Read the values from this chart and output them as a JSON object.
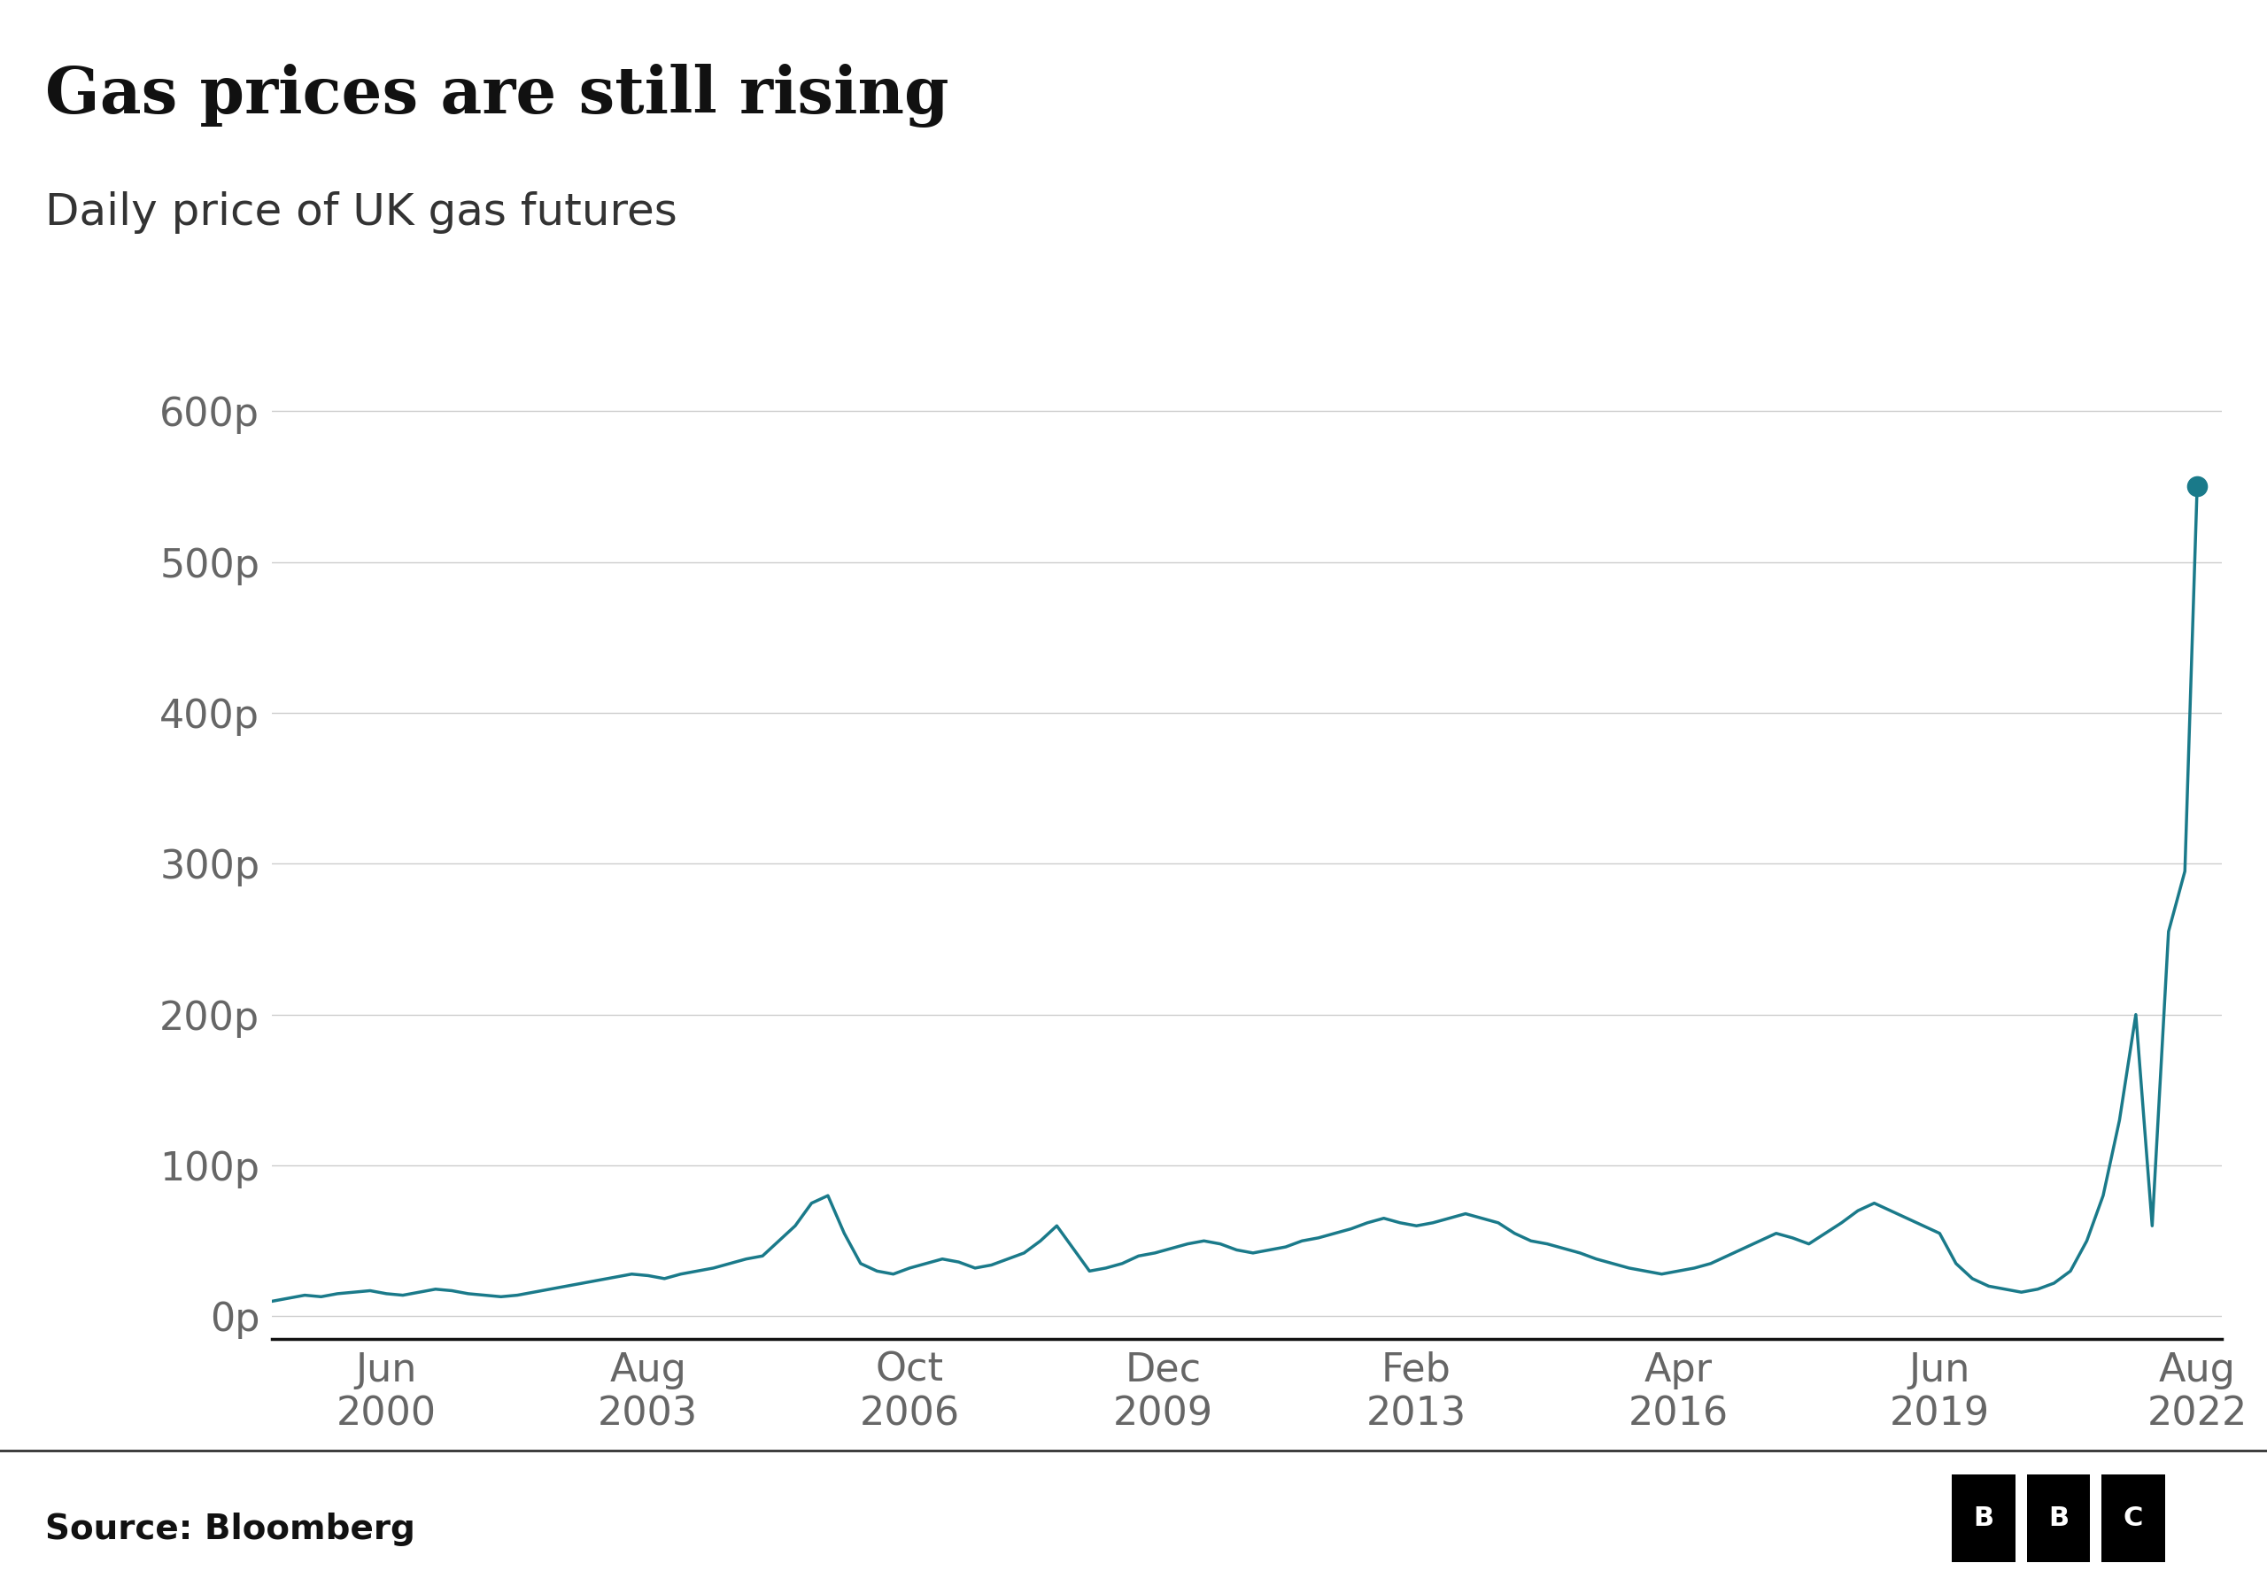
{
  "title": "Gas prices are still rising",
  "subtitle": "Daily price of UK gas futures",
  "source": "Source: Bloomberg",
  "line_color": "#1a7a8a",
  "dot_color": "#1a7a8a",
  "background_color": "#ffffff",
  "yticks": [
    0,
    100,
    200,
    300,
    400,
    500,
    600
  ],
  "ytick_labels": [
    "0p",
    "100p",
    "200p",
    "300p",
    "400p",
    "500p",
    "600p"
  ],
  "ylim": [
    -15,
    640
  ],
  "xtick_labels": [
    "Jun\n2000",
    "Aug\n2003",
    "Oct\n2006",
    "Dec\n2009",
    "Feb\n2013",
    "Apr\n2016",
    "Jun\n2019",
    "Aug\n2022"
  ],
  "title_fontsize": 52,
  "subtitle_fontsize": 36,
  "tick_fontsize": 32,
  "source_fontsize": 28,
  "line_width": 2.5,
  "grid_color": "#cccccc",
  "axis_color": "#333333",
  "tick_color": "#666666",
  "series": {
    "x": [
      1999.0,
      1999.2,
      1999.4,
      1999.6,
      1999.8,
      2000.0,
      2000.2,
      2000.4,
      2000.6,
      2000.8,
      2001.0,
      2001.2,
      2001.4,
      2001.6,
      2001.8,
      2002.0,
      2002.2,
      2002.4,
      2002.6,
      2002.8,
      2003.0,
      2003.2,
      2003.4,
      2003.6,
      2003.8,
      2004.0,
      2004.2,
      2004.4,
      2004.6,
      2004.8,
      2005.0,
      2005.2,
      2005.4,
      2005.6,
      2005.8,
      2006.0,
      2006.2,
      2006.4,
      2006.6,
      2006.8,
      2007.0,
      2007.2,
      2007.4,
      2007.6,
      2007.8,
      2008.0,
      2008.2,
      2008.4,
      2008.6,
      2008.8,
      2009.0,
      2009.2,
      2009.4,
      2009.6,
      2009.8,
      2010.0,
      2010.2,
      2010.4,
      2010.6,
      2010.8,
      2011.0,
      2011.2,
      2011.4,
      2011.6,
      2011.8,
      2012.0,
      2012.2,
      2012.4,
      2012.6,
      2012.8,
      2013.0,
      2013.2,
      2013.4,
      2013.6,
      2013.8,
      2014.0,
      2014.2,
      2014.4,
      2014.6,
      2014.8,
      2015.0,
      2015.2,
      2015.4,
      2015.6,
      2015.8,
      2016.0,
      2016.2,
      2016.4,
      2016.6,
      2016.8,
      2017.0,
      2017.2,
      2017.4,
      2017.6,
      2017.8,
      2018.0,
      2018.2,
      2018.4,
      2018.6,
      2018.8,
      2019.0,
      2019.2,
      2019.4,
      2019.6,
      2019.8,
      2020.0,
      2020.2,
      2020.4,
      2020.6,
      2020.8,
      2021.0,
      2021.2,
      2021.4,
      2021.6,
      2021.8,
      2022.0,
      2022.2,
      2022.4,
      2022.55
    ],
    "y": [
      10,
      12,
      14,
      13,
      15,
      16,
      17,
      15,
      14,
      16,
      18,
      17,
      15,
      14,
      13,
      14,
      16,
      18,
      20,
      22,
      24,
      26,
      28,
      27,
      25,
      28,
      30,
      32,
      35,
      38,
      40,
      50,
      60,
      75,
      80,
      55,
      35,
      30,
      28,
      32,
      35,
      38,
      36,
      32,
      34,
      38,
      42,
      50,
      60,
      45,
      30,
      32,
      35,
      40,
      42,
      45,
      48,
      50,
      48,
      44,
      42,
      44,
      46,
      50,
      52,
      55,
      58,
      62,
      65,
      62,
      60,
      62,
      65,
      68,
      65,
      62,
      55,
      50,
      48,
      45,
      42,
      38,
      35,
      32,
      30,
      28,
      30,
      32,
      35,
      40,
      45,
      50,
      55,
      52,
      48,
      55,
      62,
      70,
      75,
      70,
      65,
      60,
      55,
      35,
      25,
      20,
      18,
      16,
      18,
      22,
      30,
      50,
      80,
      130,
      200,
      60,
      255,
      295,
      550
    ]
  },
  "xtick_positions": [
    2000.4,
    2003.6,
    2006.8,
    2009.9,
    2013.0,
    2016.2,
    2019.4,
    2022.55
  ]
}
